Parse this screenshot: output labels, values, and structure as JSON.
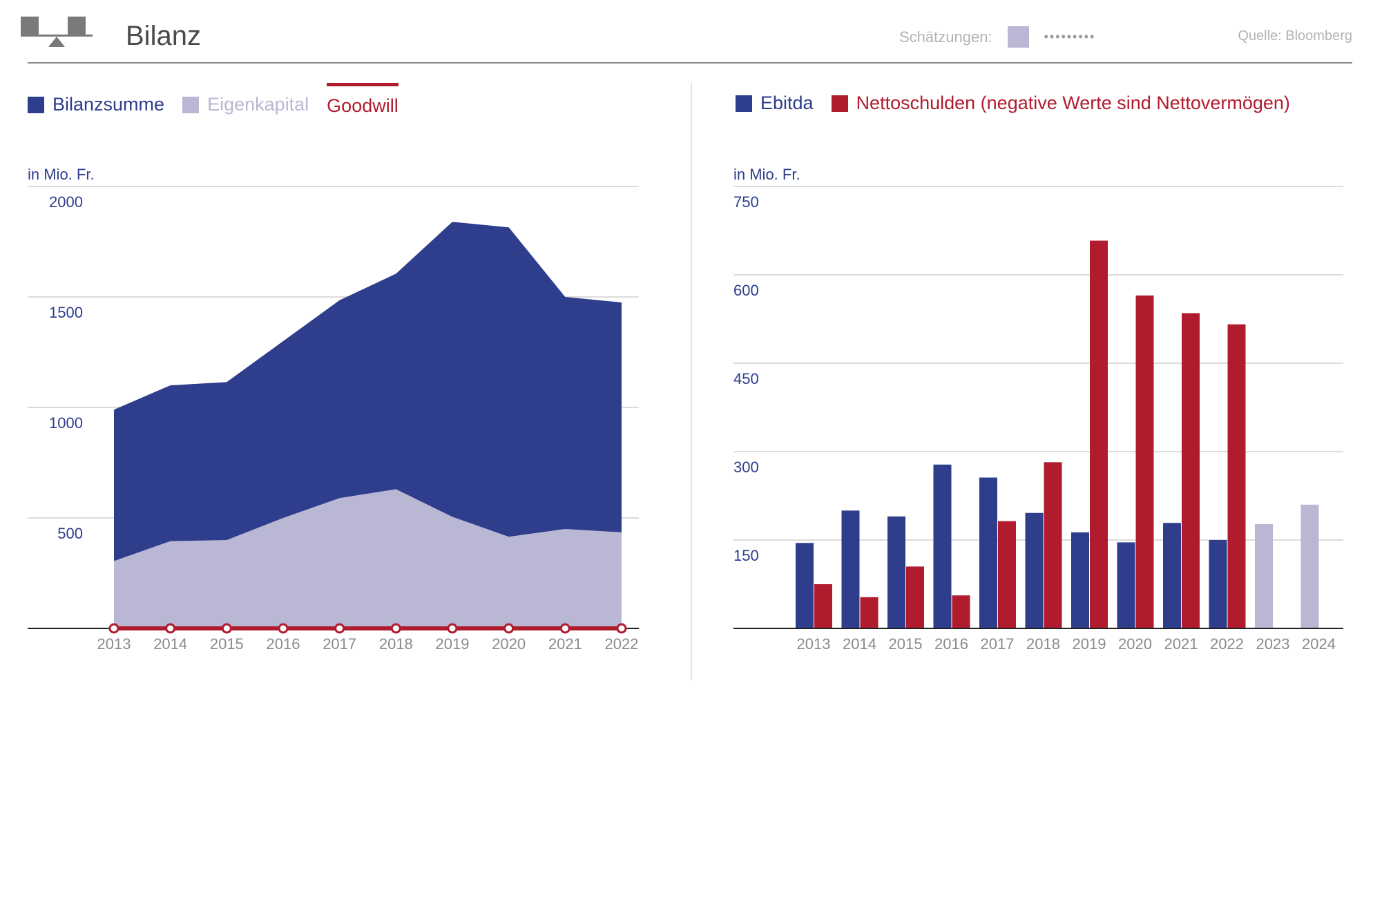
{
  "header": {
    "title": "Bilanz",
    "estimates_label": "Schätzungen:",
    "estimates_dots": "•••••••••",
    "source": "Quelle: Bloomberg",
    "logo_icon": "balance-scale-icon"
  },
  "colors": {
    "dark_blue": "#2e3d8c",
    "light_purple": "#b9b7d3",
    "red": "#b01c2e",
    "axis_text_blue": "#2e3d8c",
    "tick_gray": "#8a8a8a",
    "grid": "#d0d0d0"
  },
  "left_legend": [
    {
      "label": "Bilanzsumme",
      "color": "#2e3d8c",
      "text_color": "#2e3d8c"
    },
    {
      "label": "Eigenkapital",
      "color": "#b9b7d3",
      "text_color": "#b9b7d3"
    },
    {
      "label": "Goodwill",
      "color": "#b01c2e",
      "text_color": "#b01c2e"
    }
  ],
  "right_legend": [
    {
      "label": "Ebitda",
      "color": "#2e3d8c",
      "text_color": "#2e3d8c"
    },
    {
      "label": "Nettoschulden (negative Werte sind Nettovermögen)",
      "color": "#b01c2e",
      "text_color": "#b01c2e"
    }
  ],
  "chart_data": [
    {
      "type": "area",
      "ylabel": "in Mio. Fr.",
      "ylim": [
        0,
        2000
      ],
      "yticks": [
        500,
        1000,
        1500,
        2000
      ],
      "grid": true,
      "legend_position": "top-left",
      "x": [
        "2013",
        "2014",
        "2015",
        "2016",
        "2017",
        "2018",
        "2019",
        "2020",
        "2021",
        "2022"
      ],
      "series": [
        {
          "name": "Bilanzsumme",
          "values": [
            990,
            1100,
            1115,
            1300,
            1485,
            1605,
            1840,
            1815,
            1500,
            1475
          ]
        },
        {
          "name": "Eigenkapital",
          "values": [
            305,
            395,
            400,
            500,
            590,
            630,
            505,
            415,
            450,
            435
          ]
        },
        {
          "name": "Goodwill",
          "values": [
            0,
            0,
            0,
            0,
            0,
            0,
            0,
            0,
            0,
            0
          ]
        }
      ]
    },
    {
      "type": "bar",
      "ylabel": "in Mio. Fr.",
      "ylim": [
        0,
        750
      ],
      "yticks": [
        150,
        300,
        450,
        600,
        750
      ],
      "grid": true,
      "legend_position": "top-left",
      "categories": [
        "2013",
        "2014",
        "2015",
        "2016",
        "2017",
        "2018",
        "2019",
        "2020",
        "2021",
        "2022",
        "2023",
        "2024"
      ],
      "estimate_categories": [
        "2023",
        "2024"
      ],
      "series": [
        {
          "name": "Ebitda",
          "values": [
            145,
            200,
            190,
            278,
            256,
            196,
            163,
            146,
            179,
            150,
            177,
            210
          ]
        },
        {
          "name": "Nettoschulden (negative Werte sind Nettovermögen)",
          "values": [
            75,
            53,
            105,
            56,
            182,
            282,
            658,
            565,
            535,
            516,
            null,
            null
          ]
        }
      ]
    }
  ]
}
